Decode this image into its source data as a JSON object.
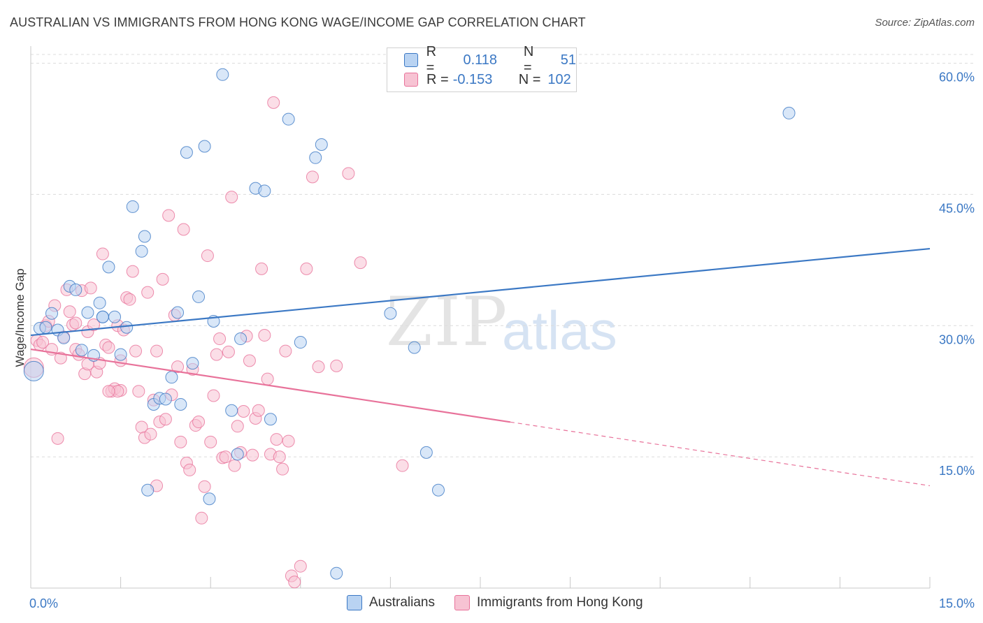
{
  "title": "AUSTRALIAN VS IMMIGRANTS FROM HONG KONG WAGE/INCOME GAP CORRELATION CHART",
  "source": "Source: ZipAtlas.com",
  "watermark": {
    "zip": "ZIP",
    "atlas": "atlas"
  },
  "colors": {
    "blue": "#3b78c4",
    "blue_fill": "#b9d3f2",
    "pink": "#e8729a",
    "pink_fill": "#f7c3d3",
    "grid": "#dcdcdc",
    "tick_label": "#3b78c4"
  },
  "legend": {
    "rows": [
      {
        "r_label": "R =",
        "r_value": "0.118",
        "n_label": "N =",
        "n_value": "51",
        "color": "blue"
      },
      {
        "r_label": "R =",
        "r_value": "-0.153",
        "n_label": "N =",
        "n_value": "102",
        "color": "pink"
      }
    ]
  },
  "bottom_legend": [
    "Australians",
    "Immigrants from Hong Kong"
  ],
  "chart_data": {
    "type": "scatter",
    "title": "AUSTRALIAN VS IMMIGRANTS FROM HONG KONG WAGE/INCOME GAP CORRELATION CHART",
    "ylabel": "Wage/Income Gap",
    "xlabel": "",
    "xlim": [
      0,
      15
    ],
    "ylim": [
      0,
      61
    ],
    "x_tick_labels": [
      "0.0%",
      "15.0%"
    ],
    "y_ticks": [
      15,
      30,
      45,
      60
    ],
    "y_tick_labels": [
      "15.0%",
      "30.0%",
      "45.0%",
      "60.0%"
    ],
    "grid": true,
    "series": [
      {
        "name": "Australians",
        "color": "blue",
        "trend": {
          "x": [
            0,
            15
          ],
          "y": [
            28.9,
            38.8
          ],
          "dashed_from": null
        },
        "points": [
          [
            0.05,
            24.8
          ],
          [
            0.15,
            29.7
          ],
          [
            0.25,
            29.8
          ],
          [
            0.35,
            31.4
          ],
          [
            0.45,
            29.5
          ],
          [
            0.55,
            28.6
          ],
          [
            0.65,
            34.5
          ],
          [
            0.75,
            34.1
          ],
          [
            0.85,
            27.2
          ],
          [
            0.95,
            31.5
          ],
          [
            1.05,
            26.6
          ],
          [
            1.15,
            32.6
          ],
          [
            1.2,
            31.0
          ],
          [
            1.3,
            36.7
          ],
          [
            1.4,
            31.0
          ],
          [
            1.5,
            26.7
          ],
          [
            1.6,
            29.8
          ],
          [
            1.7,
            43.6
          ],
          [
            1.85,
            38.5
          ],
          [
            1.9,
            40.2
          ],
          [
            1.95,
            11.2
          ],
          [
            2.05,
            21.0
          ],
          [
            2.15,
            21.7
          ],
          [
            2.25,
            21.6
          ],
          [
            2.35,
            24.1
          ],
          [
            2.45,
            31.5
          ],
          [
            2.5,
            21.0
          ],
          [
            2.6,
            49.8
          ],
          [
            2.7,
            25.7
          ],
          [
            2.8,
            33.3
          ],
          [
            2.9,
            50.5
          ],
          [
            2.98,
            10.2
          ],
          [
            3.05,
            30.5
          ],
          [
            3.2,
            58.7
          ],
          [
            3.35,
            20.3
          ],
          [
            3.45,
            15.3
          ],
          [
            3.5,
            28.5
          ],
          [
            3.75,
            45.7
          ],
          [
            3.9,
            45.4
          ],
          [
            4.0,
            19.3
          ],
          [
            4.3,
            53.6
          ],
          [
            4.5,
            28.1
          ],
          [
            4.75,
            49.2
          ],
          [
            4.85,
            50.7
          ],
          [
            5.1,
            1.7
          ],
          [
            6.0,
            31.4
          ],
          [
            6.4,
            27.5
          ],
          [
            6.6,
            15.5
          ],
          [
            6.8,
            11.2
          ],
          [
            12.65,
            54.3
          ],
          [
            1.2,
            31.0
          ]
        ]
      },
      {
        "name": "Immigrants from Hong Kong",
        "color": "pink",
        "trend": {
          "x": [
            0,
            15
          ],
          "y": [
            27.3,
            11.7
          ],
          "dashed_from": 8.0
        },
        "points": [
          [
            0.05,
            25.2
          ],
          [
            0.1,
            28.3
          ],
          [
            0.15,
            27.8
          ],
          [
            0.2,
            28.1
          ],
          [
            0.25,
            30.0
          ],
          [
            0.3,
            30.5
          ],
          [
            0.35,
            27.3
          ],
          [
            0.4,
            32.3
          ],
          [
            0.45,
            17.1
          ],
          [
            0.5,
            26.3
          ],
          [
            0.55,
            28.7
          ],
          [
            0.6,
            34.1
          ],
          [
            0.65,
            31.6
          ],
          [
            0.7,
            30.1
          ],
          [
            0.75,
            27.3
          ],
          [
            0.8,
            26.7
          ],
          [
            0.85,
            34.0
          ],
          [
            0.9,
            24.5
          ],
          [
            0.95,
            29.3
          ],
          [
            1.0,
            34.3
          ],
          [
            1.05,
            30.1
          ],
          [
            1.1,
            24.7
          ],
          [
            1.15,
            25.7
          ],
          [
            1.2,
            38.2
          ],
          [
            1.25,
            27.8
          ],
          [
            1.3,
            27.5
          ],
          [
            1.35,
            22.5
          ],
          [
            1.4,
            22.8
          ],
          [
            1.45,
            30.0
          ],
          [
            1.5,
            22.6
          ],
          [
            1.55,
            29.5
          ],
          [
            1.6,
            33.2
          ],
          [
            1.65,
            33.0
          ],
          [
            1.7,
            36.2
          ],
          [
            1.75,
            27.1
          ],
          [
            1.8,
            22.5
          ],
          [
            1.85,
            18.4
          ],
          [
            1.9,
            17.2
          ],
          [
            1.95,
            33.8
          ],
          [
            2.0,
            17.6
          ],
          [
            2.05,
            21.5
          ],
          [
            2.1,
            11.7
          ],
          [
            2.15,
            19.0
          ],
          [
            2.2,
            35.3
          ],
          [
            2.25,
            19.3
          ],
          [
            2.3,
            42.6
          ],
          [
            2.35,
            22.1
          ],
          [
            2.4,
            31.2
          ],
          [
            2.45,
            25.3
          ],
          [
            2.5,
            16.7
          ],
          [
            2.55,
            41.0
          ],
          [
            2.6,
            14.3
          ],
          [
            2.65,
            13.5
          ],
          [
            2.7,
            25.0
          ],
          [
            2.75,
            18.6
          ],
          [
            2.8,
            19.0
          ],
          [
            2.85,
            8.0
          ],
          [
            2.9,
            11.6
          ],
          [
            2.95,
            38.0
          ],
          [
            3.0,
            16.7
          ],
          [
            3.05,
            22.0
          ],
          [
            3.1,
            26.7
          ],
          [
            3.15,
            28.5
          ],
          [
            3.2,
            14.9
          ],
          [
            3.25,
            15.0
          ],
          [
            3.3,
            27.0
          ],
          [
            3.35,
            44.7
          ],
          [
            3.4,
            14.0
          ],
          [
            3.45,
            18.5
          ],
          [
            3.5,
            15.5
          ],
          [
            3.55,
            20.2
          ],
          [
            3.6,
            28.8
          ],
          [
            3.65,
            26.0
          ],
          [
            3.7,
            15.2
          ],
          [
            3.75,
            19.4
          ],
          [
            3.8,
            20.3
          ],
          [
            3.85,
            36.5
          ],
          [
            3.9,
            28.9
          ],
          [
            3.95,
            23.9
          ],
          [
            4.0,
            15.3
          ],
          [
            4.05,
            55.5
          ],
          [
            4.1,
            17.0
          ],
          [
            4.15,
            15.0
          ],
          [
            4.2,
            13.6
          ],
          [
            4.25,
            27.1
          ],
          [
            4.3,
            16.8
          ],
          [
            4.35,
            1.4
          ],
          [
            4.4,
            0.7
          ],
          [
            4.5,
            2.5
          ],
          [
            4.6,
            36.5
          ],
          [
            4.7,
            47.0
          ],
          [
            4.8,
            25.3
          ],
          [
            5.1,
            25.4
          ],
          [
            5.3,
            47.4
          ],
          [
            5.5,
            37.2
          ],
          [
            6.2,
            14.0
          ],
          [
            1.45,
            22.5
          ],
          [
            0.95,
            25.6
          ],
          [
            0.75,
            30.3
          ],
          [
            1.5,
            26.0
          ],
          [
            2.1,
            27.1
          ],
          [
            1.3,
            22.5
          ]
        ]
      }
    ]
  }
}
